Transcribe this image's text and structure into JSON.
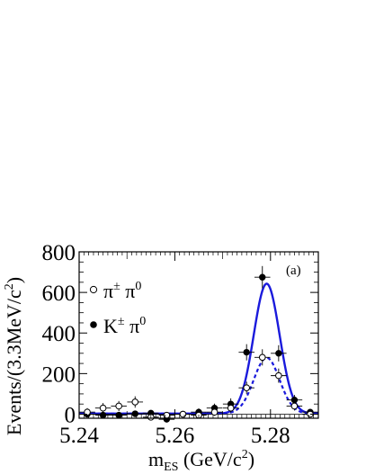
{
  "chart_data": {
    "type": "scatter",
    "panel_label": "(a)",
    "xlabel": "m",
    "xlabel_sub": "ES",
    "xlabel_units": " (GeV/c",
    "xlabel_units_sup": "2",
    "xlabel_units_end": ")",
    "ylabel": "Events/(3.3MeV/c",
    "ylabel_sup": "2",
    "ylabel_end": ")",
    "xlim": [
      5.24,
      5.29
    ],
    "ylim": [
      -20,
      800
    ],
    "xticks": [
      5.24,
      5.26,
      5.28
    ],
    "xtick_labels": [
      "5.24",
      "5.26",
      "5.28"
    ],
    "yticks": [
      0,
      200,
      400,
      600,
      800
    ],
    "ytick_labels": [
      "0",
      "200",
      "400",
      "600",
      "800"
    ],
    "legend": [
      {
        "marker": "open-circle",
        "label": "π",
        "sup1": "±",
        "mid": " π",
        "sup2": "0"
      },
      {
        "marker": "filled-circle",
        "label": "K",
        "sup1": "±",
        "mid": " π",
        "sup2": "0"
      }
    ],
    "series": [
      {
        "name": "K± π0",
        "marker": "filled-circle",
        "x": [
          5.2417,
          5.245,
          5.2483,
          5.2517,
          5.255,
          5.2583,
          5.2617,
          5.265,
          5.2683,
          5.2717,
          5.275,
          5.2783,
          5.2817,
          5.285,
          5.2883
        ],
        "y": [
          0,
          -5,
          -5,
          2,
          5,
          -25,
          0,
          10,
          30,
          50,
          305,
          675,
          300,
          70,
          10
        ],
        "yerr": [
          15,
          15,
          15,
          15,
          15,
          15,
          15,
          18,
          22,
          28,
          40,
          55,
          40,
          25,
          15
        ]
      },
      {
        "name": "π± π0",
        "marker": "open-circle",
        "x": [
          5.2417,
          5.245,
          5.2483,
          5.2517,
          5.255,
          5.2583,
          5.2617,
          5.265,
          5.2683,
          5.2717,
          5.275,
          5.2783,
          5.2817,
          5.285,
          5.2883
        ],
        "y": [
          10,
          30,
          40,
          60,
          -15,
          -5,
          0,
          -5,
          10,
          30,
          130,
          280,
          190,
          40,
          0
        ],
        "yerr": [
          20,
          25,
          25,
          28,
          15,
          15,
          15,
          15,
          18,
          22,
          30,
          40,
          35,
          22,
          15
        ]
      }
    ],
    "fits": [
      {
        "name": "K± π0 fit",
        "style": "solid",
        "color": "#1a1adc",
        "peak": 640,
        "mean": 5.2792,
        "sigma": 0.0027
      },
      {
        "name": "π± π0 fit",
        "style": "dashed",
        "color": "#1a1adc",
        "peak": 275,
        "mean": 5.2792,
        "sigma": 0.0027
      }
    ],
    "baseline": 0,
    "grid": false
  }
}
